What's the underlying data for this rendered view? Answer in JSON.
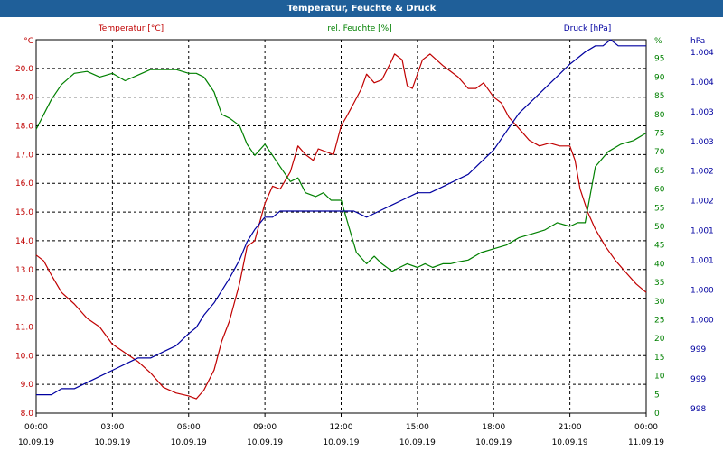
{
  "chart_data": {
    "type": "line",
    "title": "Temperatur, Feuchte & Druck",
    "x_ticks": [
      {
        "time": "00:00",
        "date": "10.09.19"
      },
      {
        "time": "03:00",
        "date": "10.09.19"
      },
      {
        "time": "06:00",
        "date": "10.09.19"
      },
      {
        "time": "09:00",
        "date": "10.09.19"
      },
      {
        "time": "12:00",
        "date": "10.09.19"
      },
      {
        "time": "15:00",
        "date": "10.09.19"
      },
      {
        "time": "18:00",
        "date": "10.09.19"
      },
      {
        "time": "21:00",
        "date": "10.09.19"
      },
      {
        "time": "00:00",
        "date": "11.09.19"
      }
    ],
    "xlim_hours": [
      0,
      24
    ],
    "axes": {
      "temperature": {
        "label": "Temperatur [°C]",
        "unit": "°C",
        "ylim": [
          8.0,
          21.0
        ],
        "ticks": [
          "8.0",
          "9.0",
          "10.0",
          "11.0",
          "12.0",
          "13.0",
          "14.0",
          "15.0",
          "16.0",
          "17.0",
          "18.0",
          "19.0",
          "20.0"
        ],
        "color": "#c00000"
      },
      "humidity": {
        "label": "rel. Feuchte [%]",
        "unit": "%",
        "ylim": [
          0,
          100
        ],
        "ticks": [
          "0",
          "5",
          "10",
          "15",
          "20",
          "25",
          "30",
          "35",
          "40",
          "45",
          "50",
          "55",
          "60",
          "65",
          "70",
          "75",
          "80",
          "85",
          "90",
          "95"
        ],
        "color": "#008000"
      },
      "pressure": {
        "label": "Druck [hPa]",
        "unit": "hPa",
        "ylim": [
          998.0,
          1004.1
        ],
        "ticks": [
          "998",
          "999",
          "999",
          "1.000",
          "1.000",
          "1.001",
          "1.001",
          "1.002",
          "1.002",
          "1.003",
          "1.003",
          "1.004",
          "1.004"
        ],
        "color": "#0000a0"
      }
    },
    "series": [
      {
        "name": "Temperatur",
        "axis": "temperature",
        "color": "#c00000",
        "x": [
          0,
          0.3,
          0.6,
          1,
          1.5,
          2,
          2.5,
          3,
          3.5,
          4,
          4.5,
          5,
          5.5,
          6,
          6.3,
          6.6,
          7,
          7.3,
          7.6,
          8,
          8.3,
          8.6,
          9,
          9.3,
          9.6,
          10,
          10.3,
          10.6,
          10.9,
          11.1,
          11.4,
          11.7,
          12,
          12.2,
          12.5,
          12.8,
          13,
          13.3,
          13.6,
          14,
          14.1,
          14.4,
          14.6,
          14.8,
          15.2,
          15.5,
          16,
          16.3,
          16.6,
          17,
          17.3,
          17.6,
          18,
          18.3,
          18.6,
          19,
          19.4,
          19.8,
          20.2,
          20.6,
          21,
          21.2,
          21.4,
          21.7,
          22,
          22.4,
          22.8,
          23.2,
          23.6,
          24
        ],
        "values": [
          13.5,
          13.3,
          12.8,
          12.2,
          11.8,
          11.3,
          11.0,
          10.4,
          10.1,
          9.8,
          9.4,
          8.9,
          8.7,
          8.6,
          8.5,
          8.8,
          9.5,
          10.5,
          11.2,
          12.5,
          13.8,
          14.0,
          15.3,
          15.9,
          15.8,
          16.4,
          17.3,
          17.0,
          16.8,
          17.2,
          17.1,
          17.0,
          18.0,
          18.3,
          18.8,
          19.3,
          19.8,
          19.5,
          19.6,
          20.3,
          20.5,
          20.3,
          19.4,
          19.3,
          20.3,
          20.5,
          20.1,
          19.9,
          19.7,
          19.3,
          19.3,
          19.5,
          19.0,
          18.8,
          18.3,
          17.9,
          17.5,
          17.3,
          17.4,
          17.3,
          17.3,
          16.8,
          15.8,
          15.0,
          14.4,
          13.8,
          13.3,
          12.9,
          12.5,
          12.2
        ]
      },
      {
        "name": "rel. Feuchte",
        "axis": "humidity",
        "color": "#008000",
        "x": [
          0,
          0.3,
          0.6,
          1,
          1.5,
          2,
          2.5,
          3,
          3.5,
          4,
          4.5,
          5,
          5.5,
          6,
          6.3,
          6.6,
          7,
          7.3,
          7.6,
          8,
          8.3,
          8.6,
          9,
          9.3,
          9.6,
          10,
          10.3,
          10.6,
          11,
          11.3,
          11.6,
          12,
          12.3,
          12.6,
          13,
          13.3,
          13.6,
          14,
          14.3,
          14.6,
          15,
          15.3,
          15.6,
          16,
          16.3,
          16.6,
          17,
          17.5,
          18,
          18.5,
          19,
          19.5,
          20,
          20.5,
          21,
          21.3,
          21.6,
          22,
          22.5,
          23,
          23.5,
          24
        ],
        "values": [
          76,
          80,
          84,
          88,
          91,
          91.5,
          90,
          91,
          89,
          90.5,
          92,
          92,
          92,
          91,
          91,
          90,
          86,
          80,
          79,
          77,
          72,
          69,
          72,
          69,
          66,
          62,
          63,
          59,
          58,
          59,
          57,
          57,
          50,
          43,
          40,
          42,
          40,
          38,
          39,
          40,
          39,
          40,
          39,
          40,
          40,
          40.5,
          41,
          43,
          44,
          45,
          47,
          48,
          49,
          51,
          50,
          51,
          51,
          66,
          70,
          72,
          73,
          75
        ]
      },
      {
        "name": "Druck",
        "axis": "pressure",
        "color": "#0000a0",
        "x": [
          0,
          0.3,
          0.6,
          1,
          1.5,
          2,
          2.5,
          3,
          3.5,
          4,
          4.5,
          5,
          5.5,
          6,
          6.3,
          6.6,
          7,
          7.3,
          7.6,
          8,
          8.3,
          8.6,
          9,
          9.3,
          9.6,
          10,
          10.3,
          10.6,
          11,
          11.5,
          12,
          12.5,
          13,
          13.5,
          14,
          14.5,
          15,
          15.5,
          16,
          16.5,
          17,
          17.5,
          18,
          18.5,
          19,
          19.5,
          20,
          20.5,
          21,
          21.3,
          21.6,
          22,
          22.3,
          22.6,
          22.9,
          23.2,
          23.5,
          23.8,
          24
        ],
        "values": [
          998.3,
          998.3,
          998.3,
          998.4,
          998.4,
          998.5,
          998.6,
          998.7,
          998.8,
          998.9,
          998.9,
          999.0,
          999.1,
          999.3,
          999.4,
          999.6,
          999.8,
          1000.0,
          1000.2,
          1000.5,
          1000.8,
          1001.0,
          1001.2,
          1001.2,
          1001.3,
          1001.3,
          1001.3,
          1001.3,
          1001.3,
          1001.3,
          1001.3,
          1001.3,
          1001.2,
          1001.3,
          1001.4,
          1001.5,
          1001.6,
          1001.6,
          1001.7,
          1001.8,
          1001.9,
          1002.1,
          1002.3,
          1002.6,
          1002.9,
          1003.1,
          1003.3,
          1003.5,
          1003.7,
          1003.8,
          1003.9,
          1004.0,
          1004.0,
          1004.1,
          1004.0,
          1004.0,
          1004.0,
          1004.0,
          1004.0
        ]
      }
    ],
    "grid": true
  }
}
